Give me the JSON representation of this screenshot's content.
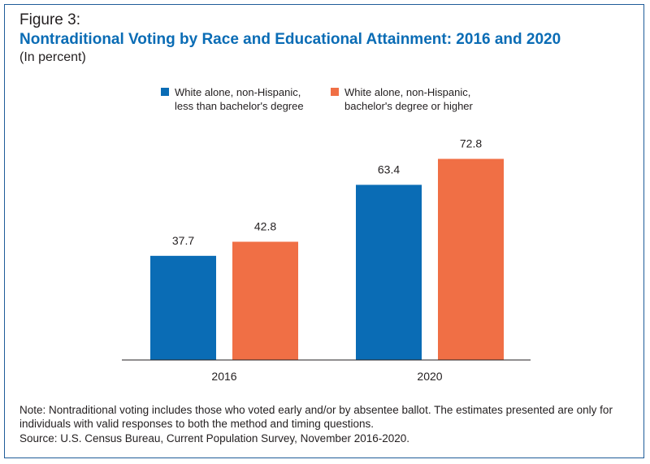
{
  "figure_label": "Figure 3:",
  "title": "Nontraditional Voting by Race and Educational Attainment: 2016 and 2020",
  "subtitle": "(In percent)",
  "note": "Note: Nontraditional voting includes those who voted early and/or by absentee ballot. The estimates presented are only for individuals with valid responses to both the method and timing questions.",
  "source": "Source: U.S. Census Bureau, Current Population Survey, November 2016-2020.",
  "colors": {
    "series1": "#0a6cb5",
    "series2": "#f06f45",
    "title": "#0a6cb5",
    "border": "#1f5c99"
  },
  "chart_data": {
    "type": "bar",
    "title": "Nontraditional Voting by Race and Educational Attainment: 2016 and 2020",
    "categories": [
      "2016",
      "2020"
    ],
    "series": [
      {
        "name": "White alone, non-Hispanic,\nless than bachelor's degree",
        "values": [
          37.7,
          63.4
        ],
        "color": "#0a6cb5"
      },
      {
        "name": "White alone, non-Hispanic,\nbachelor's degree or higher",
        "values": [
          42.8,
          72.8
        ],
        "color": "#f06f45"
      }
    ],
    "xlabel": "",
    "ylabel": "",
    "ylim": [
      0,
      80
    ],
    "grid": false,
    "legend": "top"
  }
}
